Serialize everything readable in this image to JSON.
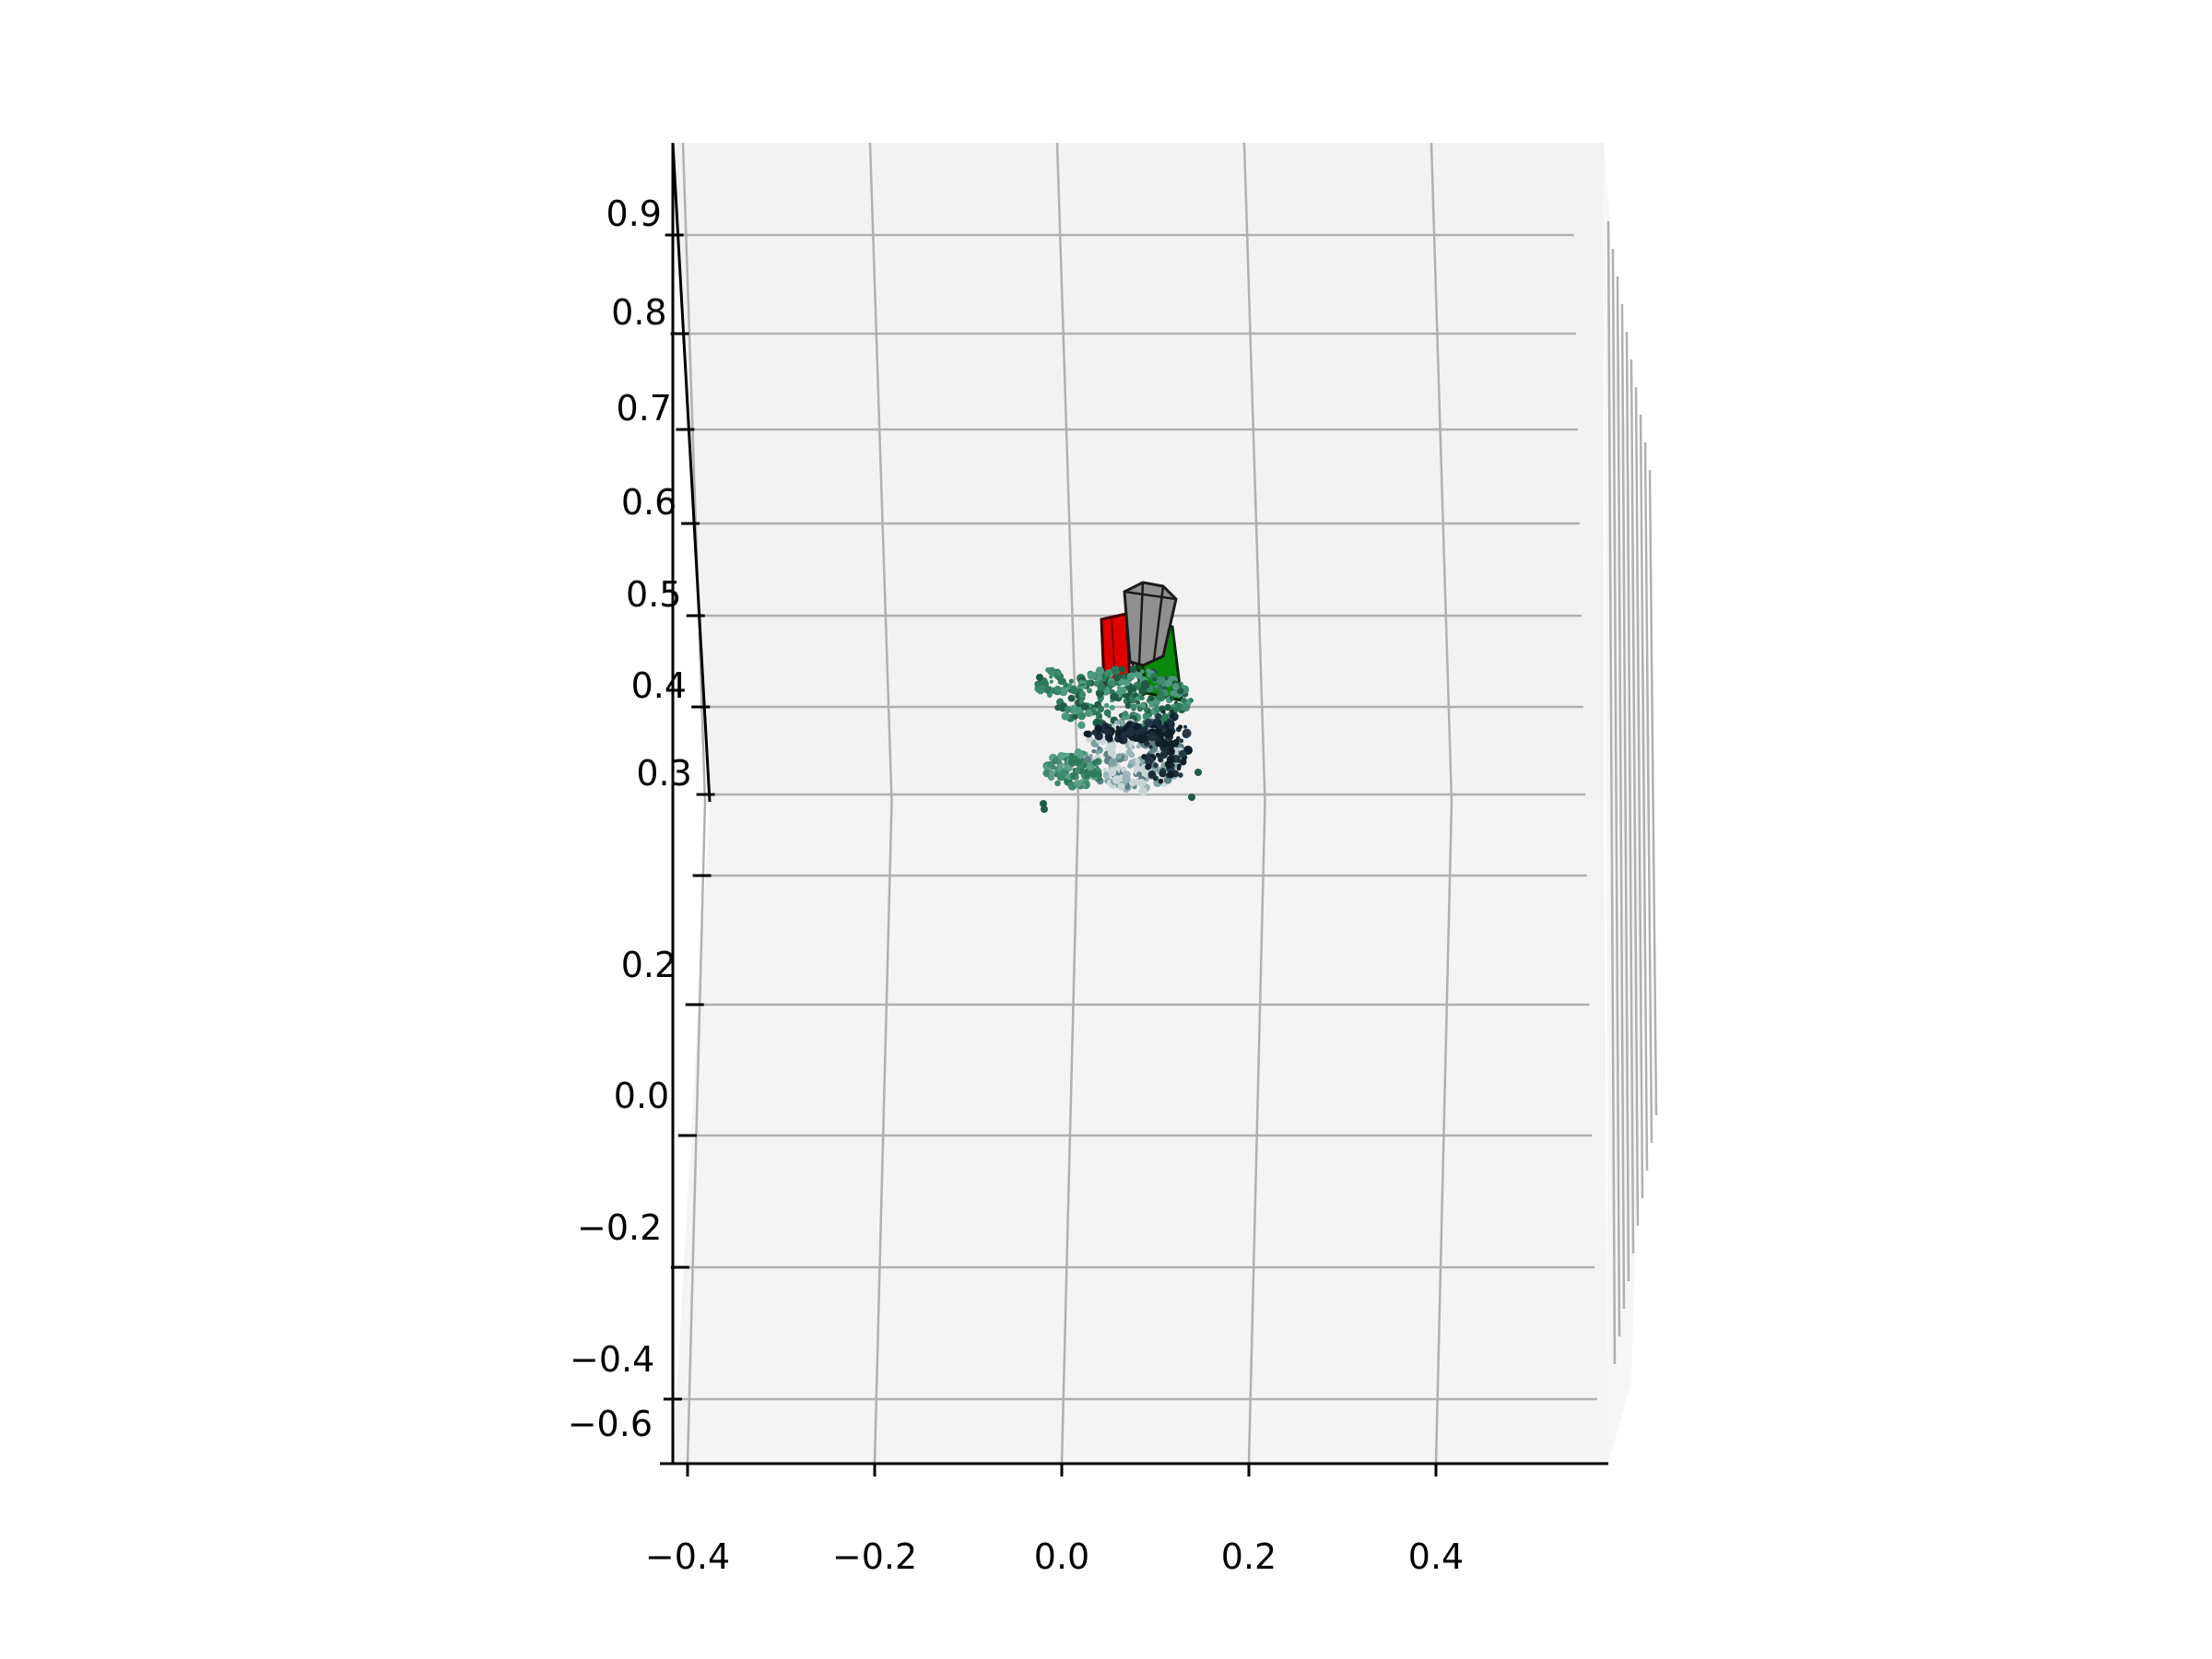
{
  "chart_data": {
    "type": "scatter",
    "projection": "3d",
    "title": "",
    "xlabel": "",
    "ylabel": "",
    "zlabel": "",
    "grid": true,
    "legend": "none",
    "x_ticks": [
      {
        "label": "−0.4",
        "value": -0.4
      },
      {
        "label": "−0.2",
        "value": -0.2
      },
      {
        "label": "0.0",
        "value": 0.0
      },
      {
        "label": "0.2",
        "value": 0.2
      },
      {
        "label": "0.4",
        "value": 0.4
      }
    ],
    "left_axis_ticks": [
      {
        "label": "0.9",
        "value": 0.9
      },
      {
        "label": "0.8",
        "value": 0.8
      },
      {
        "label": "0.7",
        "value": 0.7
      },
      {
        "label": "0.6",
        "value": 0.6
      },
      {
        "label": "0.5",
        "value": 0.5
      },
      {
        "label": "0.4",
        "value": 0.4
      },
      {
        "label": "0.3",
        "value": 0.3
      },
      {
        "label": "",
        "value": null
      },
      {
        "label": "0.2",
        "value": 0.2
      },
      {
        "label": "0.0",
        "value": 0.0
      },
      {
        "label": "−0.2",
        "value": -0.2
      },
      {
        "label": "−0.4",
        "value": -0.4
      },
      {
        "label": "−0.6",
        "value": -0.6
      }
    ],
    "objects": [
      {
        "name": "gripper",
        "kind": "box",
        "color": "#8a8a8a"
      },
      {
        "name": "red-object",
        "kind": "box",
        "color": "#e00000"
      },
      {
        "name": "green-object",
        "kind": "box",
        "color": "#0a8a0a"
      },
      {
        "name": "point-cloud",
        "kind": "points",
        "color": "#3f8a6e"
      }
    ],
    "colors": {
      "pane_upper": "#f2f2f2",
      "pane_lower": "#f4f4f4",
      "grid": "#b0b0b0",
      "axis": "#000000"
    }
  }
}
